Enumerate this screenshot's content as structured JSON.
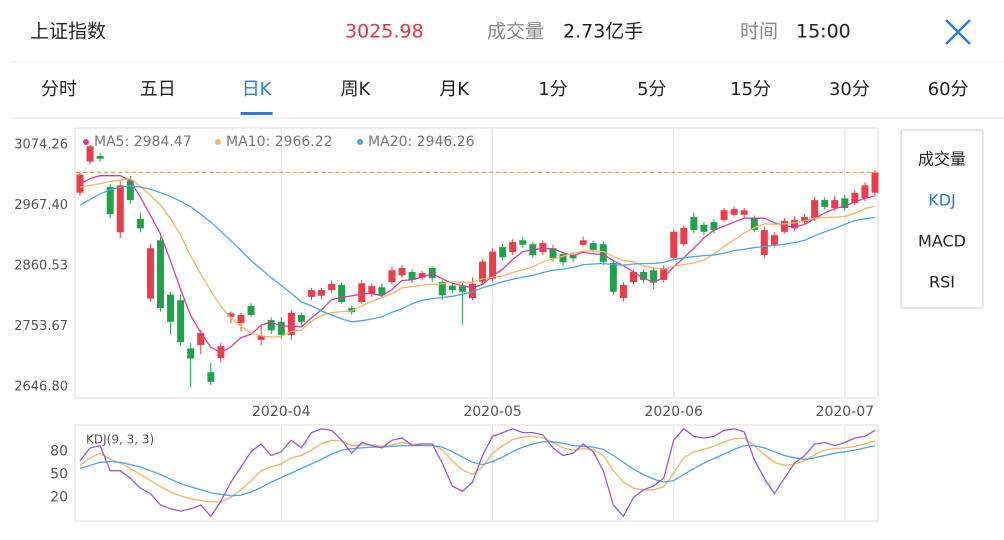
{
  "header": {
    "title": "上证指数",
    "price": 3025.98,
    "volume_label": "成交量",
    "volume": "2.73亿手",
    "time_label": "时间",
    "time": "15:00"
  },
  "tabs": [
    "分时",
    "五日",
    "日K",
    "周K",
    "月K",
    "1分",
    "5分",
    "15分",
    "30分",
    "60分"
  ],
  "active_tab": 2,
  "indicators": [
    "成交量",
    "KDJ",
    "MACD",
    "RSI"
  ],
  "active_indicator": 1,
  "chart_data": [
    {
      "type": "candlestick",
      "categories": [
        null,
        null,
        null,
        null,
        null,
        null,
        null,
        null,
        null,
        null,
        null,
        null,
        null,
        null,
        null,
        null,
        null,
        null,
        null,
        null,
        "2020-04",
        null,
        null,
        null,
        null,
        null,
        null,
        null,
        null,
        null,
        null,
        null,
        null,
        null,
        null,
        null,
        null,
        null,
        null,
        null,
        null,
        "2020-05",
        null,
        null,
        null,
        null,
        null,
        null,
        null,
        null,
        null,
        null,
        null,
        null,
        null,
        null,
        null,
        null,
        null,
        "2020-06",
        null,
        null,
        null,
        null,
        null,
        null,
        null,
        null,
        null,
        null,
        null,
        null,
        null,
        null,
        null,
        null,
        "2020-07",
        null,
        null,
        null
      ],
      "open": [
        2990,
        3045,
        3055,
        3000,
        2920,
        3012,
        2944,
        2803,
        2906,
        2810,
        2800,
        2715,
        2721,
        2673,
        2698,
        2771,
        2760,
        2790,
        2730,
        2765,
        2762,
        2739,
        2774,
        2806,
        2808,
        2818,
        2827,
        2786,
        2797,
        2811,
        2823,
        2832,
        2844,
        2850,
        2840,
        2857,
        2832,
        2826,
        2825,
        2804,
        2833,
        2838,
        2894,
        2885,
        2906,
        2899,
        2885,
        2892,
        2882,
        2880,
        2898,
        2901,
        2899,
        2866,
        2804,
        2832,
        2850,
        2853,
        2836,
        2875,
        2899,
        2947,
        2933,
        2938,
        2942,
        2951,
        2951,
        2945,
        2880,
        2898,
        2921,
        2927,
        2938,
        2945,
        2977,
        2963,
        2980,
        2972,
        2980,
        2990
      ],
      "high": [
        3025,
        3074.26,
        3060,
        3005,
        3010,
        3020,
        2955,
        2900,
        2912,
        2815,
        2810,
        2725,
        2748,
        2690,
        2725,
        2780,
        2778,
        2795,
        2755,
        2770,
        2770,
        2782,
        2778,
        2822,
        2822,
        2835,
        2832,
        2790,
        2836,
        2830,
        2830,
        2860,
        2862,
        2855,
        2852,
        2860,
        2836,
        2830,
        2830,
        2840,
        2872,
        2892,
        2900,
        2908,
        2912,
        2903,
        2906,
        2898,
        2886,
        2885,
        2912,
        2905,
        2904,
        2870,
        2832,
        2855,
        2855,
        2858,
        2862,
        2925,
        2932,
        2955,
        2938,
        2944,
        2963,
        2966,
        2963,
        2950,
        2930,
        2920,
        2945,
        2948,
        2952,
        2982,
        2982,
        2985,
        2986,
        2995,
        3008,
        3030
      ],
      "low": [
        2985,
        3040,
        3045,
        2945,
        2910,
        2970,
        2920,
        2797,
        2780,
        2740,
        2720,
        2646.8,
        2705,
        2650,
        2690,
        2760,
        2745,
        2770,
        2720,
        2740,
        2732,
        2730,
        2755,
        2800,
        2802,
        2812,
        2794,
        2775,
        2794,
        2806,
        2805,
        2828,
        2840,
        2830,
        2835,
        2832,
        2800,
        2812,
        2757,
        2800,
        2830,
        2833,
        2870,
        2880,
        2893,
        2875,
        2880,
        2868,
        2860,
        2868,
        2895,
        2885,
        2862,
        2810,
        2798,
        2828,
        2830,
        2820,
        2832,
        2870,
        2895,
        2918,
        2915,
        2918,
        2938,
        2948,
        2945,
        2920,
        2875,
        2893,
        2918,
        2922,
        2933,
        2940,
        2960,
        2958,
        2958,
        2968,
        2975,
        2985
      ],
      "close": [
        3022,
        3072,
        3050,
        2952,
        3003,
        2977,
        2927,
        2892,
        2786,
        2762,
        2726,
        2697,
        2742,
        2656,
        2719,
        2777,
        2774,
        2774,
        2738,
        2747,
        2739,
        2778,
        2762,
        2818,
        2818,
        2829,
        2797,
        2779,
        2830,
        2825,
        2809,
        2853,
        2857,
        2836,
        2848,
        2839,
        2809,
        2818,
        2815,
        2829,
        2868,
        2886,
        2876,
        2903,
        2898,
        2880,
        2901,
        2875,
        2867,
        2874,
        2906,
        2889,
        2868,
        2815,
        2827,
        2850,
        2836,
        2831,
        2857,
        2921,
        2928,
        2924,
        2921,
        2924,
        2959,
        2961,
        2959,
        2924,
        2924,
        2915,
        2940,
        2942,
        2947,
        2977,
        2965,
        2977,
        2963,
        2990,
        3003,
        3025.98
      ],
      "up_color": "#ee3b4a",
      "down_color": "#1ea34a",
      "price_line_color": "#f0a22e",
      "series": [
        {
          "name": "MA5: 2984.47",
          "color": "#d43f9f",
          "values": [
            3005,
            3015,
            3020,
            3020,
            3020,
            3011,
            2982,
            2950,
            2917,
            2869,
            2819,
            2773,
            2743,
            2717,
            2708,
            2718,
            2734,
            2740,
            2756,
            2762,
            2754,
            2755,
            2753,
            2769,
            2783,
            2801,
            2805,
            2808,
            2811,
            2812,
            2808,
            2819,
            2835,
            2836,
            2841,
            2847,
            2838,
            2830,
            2826,
            2822,
            2828,
            2843,
            2855,
            2872,
            2886,
            2889,
            2892,
            2891,
            2884,
            2879,
            2885,
            2882,
            2881,
            2870,
            2861,
            2850,
            2839,
            2832,
            2840,
            2859,
            2875,
            2892,
            2910,
            2924,
            2931,
            2938,
            2945,
            2945,
            2945,
            2937,
            2932,
            2929,
            2934,
            2944,
            2954,
            2962,
            2966,
            2974,
            2980,
            2984.47
          ]
        },
        {
          "name": "MA10: 2966.22",
          "color": "#f0b660",
          "values": [
            3000,
            3003,
            3006,
            3010,
            3012,
            3015,
            3001,
            2985,
            2968,
            2944,
            2915,
            2878,
            2846,
            2817,
            2789,
            2769,
            2754,
            2742,
            2737,
            2735,
            2736,
            2745,
            2747,
            2763,
            2773,
            2778,
            2780,
            2781,
            2790,
            2798,
            2805,
            2812,
            2822,
            2824,
            2827,
            2828,
            2829,
            2833,
            2831,
            2832,
            2838,
            2841,
            2843,
            2849,
            2854,
            2859,
            2868,
            2873,
            2878,
            2883,
            2887,
            2887,
            2886,
            2877,
            2870,
            2868,
            2861,
            2857,
            2855,
            2860,
            2863,
            2866,
            2871,
            2882,
            2895,
            2907,
            2919,
            2928,
            2935,
            2934,
            2935,
            2937,
            2940,
            2945,
            2946,
            2947,
            2948,
            2954,
            2962,
            2966.22
          ]
        },
        {
          "name": "MA20: 2946.26",
          "color": "#4aa8e0",
          "values": [
            2968,
            2978,
            2988,
            2995,
            3000,
            3002,
            3000,
            2996,
            2990,
            2983,
            2975,
            2965,
            2952,
            2938,
            2922,
            2905,
            2888,
            2870,
            2855,
            2840,
            2826,
            2812,
            2797,
            2790,
            2781,
            2774,
            2767,
            2762,
            2764,
            2767,
            2771,
            2779,
            2785,
            2794,
            2800,
            2803,
            2805,
            2807,
            2811,
            2815,
            2822,
            2827,
            2833,
            2837,
            2841,
            2844,
            2849,
            2853,
            2855,
            2858,
            2863,
            2864,
            2865,
            2863,
            2862,
            2864,
            2865,
            2865,
            2867,
            2872,
            2875,
            2877,
            2879,
            2880,
            2883,
            2888,
            2890,
            2893,
            2895,
            2897,
            2899,
            2902,
            2906,
            2914,
            2921,
            2927,
            2934,
            2941,
            2944,
            2946.26
          ]
        }
      ],
      "ylim": [
        2627.4,
        3104.3
      ],
      "yticks": [
        {
          "value": 2646.8,
          "label": "2646.80"
        },
        2753.67,
        2860.53,
        {
          "value": 2967.4,
          "label": "2967.40"
        },
        3074.26
      ],
      "grid": true
    },
    {
      "type": "line",
      "title": "KDJ(9, 3, 3)",
      "series": [
        {
          "color": "#f0b660",
          "values": [
            62,
            72,
            78,
            70,
            65,
            58,
            50,
            42,
            34,
            27,
            22,
            18,
            16,
            14,
            14,
            20,
            30,
            42,
            55,
            60,
            64,
            72,
            75,
            82,
            90,
            95,
            94,
            88,
            89,
            89,
            87,
            89,
            92,
            90,
            90,
            90,
            82,
            68,
            56,
            50,
            60,
            78,
            88,
            96,
            99,
            100,
            98,
            92,
            85,
            82,
            84,
            83,
            75,
            55,
            40,
            32,
            30,
            30,
            34,
            52,
            72,
            80,
            83,
            87,
            93,
            97,
            98,
            88,
            76,
            66,
            62,
            64,
            68,
            76,
            82,
            84,
            85,
            87,
            90,
            94
          ]
        },
        {
          "color": "#4aa8e0",
          "values": [
            58,
            62,
            66,
            67,
            66,
            63,
            60,
            55,
            50,
            44,
            38,
            34,
            30,
            26,
            24,
            22,
            23,
            27,
            33,
            40,
            46,
            52,
            58,
            64,
            70,
            77,
            82,
            84,
            85,
            86,
            86,
            87,
            88,
            88,
            88,
            88,
            86,
            80,
            73,
            66,
            63,
            67,
            73,
            80,
            86,
            90,
            93,
            93,
            91,
            88,
            87,
            86,
            83,
            75,
            66,
            57,
            50,
            44,
            40,
            42,
            50,
            58,
            65,
            71,
            77,
            83,
            88,
            88,
            85,
            80,
            75,
            72,
            70,
            72,
            75,
            78,
            80,
            82,
            85,
            88
          ]
        },
        {
          "color": "#9b59d0",
          "values": [
            68,
            85,
            88,
            55,
            55,
            45,
            32,
            25,
            10,
            5,
            2,
            5,
            10,
            -5,
            15,
            40,
            60,
            80,
            90,
            75,
            80,
            95,
            85,
            105,
            110,
            108,
            95,
            78,
            92,
            88,
            85,
            95,
            98,
            88,
            90,
            90,
            65,
            35,
            28,
            40,
            75,
            100,
            105,
            110,
            105,
            105,
            102,
            85,
            75,
            78,
            90,
            80,
            55,
            10,
            -5,
            20,
            30,
            35,
            45,
            95,
            110,
            100,
            98,
            100,
            108,
            110,
            106,
            70,
            45,
            25,
            45,
            65,
            75,
            90,
            92,
            88,
            92,
            98,
            100,
            108
          ]
        }
      ],
      "ylim": [
        -11,
        115
      ],
      "yticks": [
        20,
        50,
        80
      ],
      "grid": true
    }
  ]
}
